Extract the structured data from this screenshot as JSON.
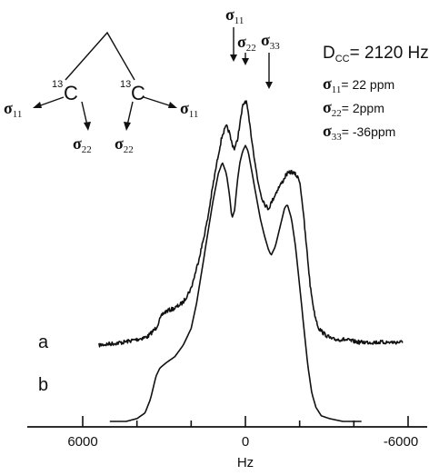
{
  "chart_data": {
    "type": "line",
    "xlabel": "Hz",
    "xlim": [
      6000,
      -6000
    ],
    "x_reversed": true,
    "xticks": [
      {
        "value": 6000,
        "label": "6000"
      },
      {
        "value": 0,
        "label": "0"
      },
      {
        "value": -6000,
        "label": "-6000"
      }
    ],
    "minor_xticks": [
      4000,
      2000,
      -2000,
      -4000
    ],
    "series": [
      {
        "name": "a",
        "noisy": true,
        "points": [
          [
            5400,
            0.0
          ],
          [
            4500,
            0.01
          ],
          [
            4000,
            0.02
          ],
          [
            3600,
            0.03
          ],
          [
            3300,
            0.06
          ],
          [
            3050,
            0.11
          ],
          [
            2900,
            0.12
          ],
          [
            2600,
            0.13
          ],
          [
            2300,
            0.15
          ],
          [
            2000,
            0.2
          ],
          [
            1800,
            0.27
          ],
          [
            1600,
            0.35
          ],
          [
            1400,
            0.44
          ],
          [
            1200,
            0.56
          ],
          [
            1000,
            0.67
          ],
          [
            850,
            0.74
          ],
          [
            700,
            0.77
          ],
          [
            600,
            0.75
          ],
          [
            500,
            0.71
          ],
          [
            400,
            0.69
          ],
          [
            300,
            0.72
          ],
          [
            200,
            0.78
          ],
          [
            100,
            0.84
          ],
          [
            0,
            0.86
          ],
          [
            -50,
            0.85
          ],
          [
            -150,
            0.78
          ],
          [
            -300,
            0.68
          ],
          [
            -450,
            0.58
          ],
          [
            -600,
            0.52
          ],
          [
            -750,
            0.49
          ],
          [
            -850,
            0.48
          ],
          [
            -1000,
            0.51
          ],
          [
            -1200,
            0.55
          ],
          [
            -1400,
            0.58
          ],
          [
            -1500,
            0.6
          ],
          [
            -1700,
            0.61
          ],
          [
            -1850,
            0.6
          ],
          [
            -2000,
            0.58
          ],
          [
            -2100,
            0.5
          ],
          [
            -2250,
            0.35
          ],
          [
            -2400,
            0.2
          ],
          [
            -2550,
            0.11
          ],
          [
            -2700,
            0.06
          ],
          [
            -2900,
            0.04
          ],
          [
            -3200,
            0.02
          ],
          [
            -3600,
            0.02
          ],
          [
            -4200,
            0.01
          ],
          [
            -5000,
            0.01
          ],
          [
            -5800,
            0.01
          ]
        ]
      },
      {
        "name": "b",
        "noisy": false,
        "points": [
          [
            5000,
            0.0
          ],
          [
            4400,
            0.0
          ],
          [
            4000,
            0.01
          ],
          [
            3700,
            0.03
          ],
          [
            3500,
            0.08
          ],
          [
            3300,
            0.16
          ],
          [
            3150,
            0.19
          ],
          [
            2900,
            0.21
          ],
          [
            2600,
            0.23
          ],
          [
            2300,
            0.27
          ],
          [
            2000,
            0.33
          ],
          [
            1800,
            0.42
          ],
          [
            1600,
            0.54
          ],
          [
            1400,
            0.66
          ],
          [
            1200,
            0.78
          ],
          [
            1000,
            0.88
          ],
          [
            850,
            0.92
          ],
          [
            700,
            0.88
          ],
          [
            580,
            0.8
          ],
          [
            500,
            0.72
          ],
          [
            400,
            0.75
          ],
          [
            300,
            0.85
          ],
          [
            200,
            0.92
          ],
          [
            100,
            0.96
          ],
          [
            0,
            0.98
          ],
          [
            -100,
            0.96
          ],
          [
            -250,
            0.88
          ],
          [
            -400,
            0.8
          ],
          [
            -550,
            0.72
          ],
          [
            -700,
            0.66
          ],
          [
            -850,
            0.61
          ],
          [
            -950,
            0.59
          ],
          [
            -1100,
            0.62
          ],
          [
            -1300,
            0.7
          ],
          [
            -1450,
            0.76
          ],
          [
            -1550,
            0.77
          ],
          [
            -1700,
            0.72
          ],
          [
            -1850,
            0.62
          ],
          [
            -2000,
            0.48
          ],
          [
            -2150,
            0.34
          ],
          [
            -2300,
            0.2
          ],
          [
            -2450,
            0.1
          ],
          [
            -2600,
            0.05
          ],
          [
            -2800,
            0.02
          ],
          [
            -3100,
            0.01
          ],
          [
            -3600,
            0.0
          ],
          [
            -4300,
            0.0
          ]
        ]
      }
    ],
    "peak_arrows": [
      {
        "label": "σ",
        "sub": "11",
        "x": 500,
        "size": "long"
      },
      {
        "label": "σ",
        "sub": "22",
        "x": 0,
        "size": "short"
      },
      {
        "label": "σ",
        "sub": "33",
        "x": -1000,
        "size": "long"
      }
    ],
    "annotations": {
      "coupling": {
        "symbol": "D",
        "sub": "CC",
        "value": "= 2120 Hz"
      },
      "shifts": [
        {
          "symbol": "σ",
          "sub": "11",
          "value": "= 22 ppm"
        },
        {
          "symbol": "σ",
          "sub": "22",
          "value": "= 2ppm"
        },
        {
          "symbol": "σ",
          "sub": "33",
          "value": "= -36ppm"
        }
      ]
    },
    "molecule": {
      "atom_label": "C",
      "isotope": "13",
      "tensor_labels": [
        {
          "symbol": "σ",
          "sub": "11"
        },
        {
          "symbol": "σ",
          "sub": "22"
        },
        {
          "symbol": "σ",
          "sub": "22"
        },
        {
          "symbol": "σ",
          "sub": "11"
        }
      ]
    }
  }
}
